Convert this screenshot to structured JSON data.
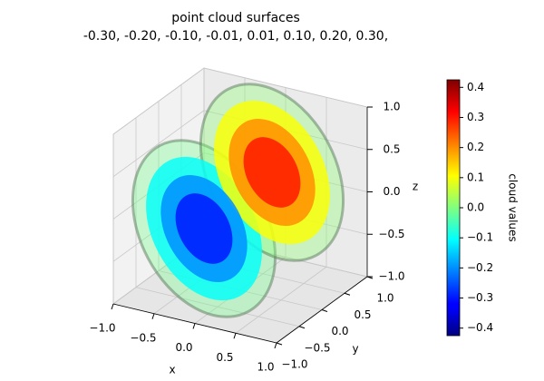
{
  "chart_data": {
    "type": "isosurface3d",
    "title": "point cloud surfaces",
    "subtitle": "-0.30, -0.20, -0.10, -0.01, 0.01, 0.10, 0.20, 0.30,",
    "levels": [
      -0.3,
      -0.2,
      -0.1,
      -0.01,
      0.01,
      0.1,
      0.2,
      0.3
    ],
    "xlabel": "x",
    "ylabel": "y",
    "zlabel": "z",
    "xlim": [
      -1,
      1
    ],
    "ylim": [
      -1,
      1
    ],
    "zlim": [
      -1,
      1
    ],
    "xticks": [
      {
        "value": -1,
        "label": "−1.0"
      },
      {
        "value": -0.5,
        "label": "−0.5"
      },
      {
        "value": 0,
        "label": "0.0"
      },
      0.5,
      {
        "value": 1,
        "label": "1.0"
      }
    ],
    "yticks": [
      {
        "value": -1,
        "label": "−1.0"
      },
      {
        "value": -0.5,
        "label": "−0.5"
      },
      {
        "value": 0,
        "label": "0.0"
      },
      0.5,
      {
        "value": 1,
        "label": "1.0"
      }
    ],
    "zticks": [
      {
        "value": -1,
        "label": "−1.0"
      },
      {
        "value": -0.5,
        "label": "−0.5"
      },
      {
        "value": 0,
        "label": "0.0"
      },
      0.5,
      {
        "value": 1,
        "label": "1.0"
      }
    ],
    "colorbar": {
      "label": "cloud values",
      "colormap": "jet",
      "lim": [
        -0.425,
        0.425
      ],
      "ticks": [
        {
          "value": -0.4,
          "label": "−0.4"
        },
        {
          "value": -0.3,
          "label": "−0.3"
        },
        {
          "value": -0.2,
          "label": "−0.2"
        },
        {
          "value": -0.1,
          "label": "−0.1"
        },
        {
          "value": 0,
          "label": "0.0"
        },
        0.1,
        0.2,
        0.3,
        0.4
      ]
    },
    "grid": true
  }
}
